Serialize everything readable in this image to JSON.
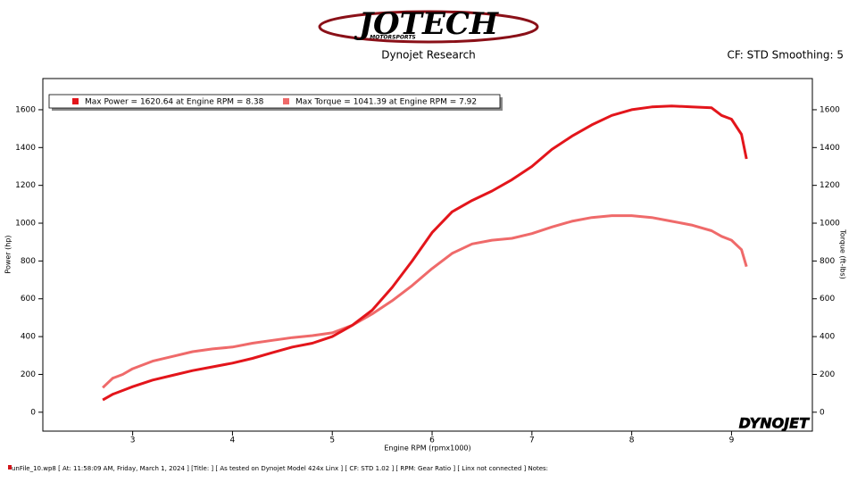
{
  "chart_data": {
    "type": "line",
    "brand": "JOTECH",
    "brand_tagline": "MOTORSPORTS",
    "title": "Dynojet Research",
    "subtitle": "CF: STD Smoothing: 5",
    "x_label": "Engine RPM (rpmx1000)",
    "y_label": "Power (hp)",
    "y2_label": "Torque (ft-lbs)",
    "watermark": "DYNOJET",
    "footer": "unFile_10.wp8  [ At: 11:58:09 AM, Friday, March 1, 2024 ] [Title: ]  [ As tested on Dynojet Model 424x Linx ] [ CF: STD 1.02 ] [ RPM: Gear Ratio ] [ Linx not connected ] Notes:",
    "x": [
      2.7,
      2.8,
      2.9,
      3.0,
      3.2,
      3.4,
      3.6,
      3.8,
      4.0,
      4.2,
      4.4,
      4.6,
      4.8,
      5.0,
      5.2,
      5.4,
      5.6,
      5.8,
      6.0,
      6.2,
      6.4,
      6.6,
      6.8,
      7.0,
      7.2,
      7.4,
      7.6,
      7.8,
      8.0,
      8.2,
      8.4,
      8.6,
      8.8,
      8.9,
      9.0,
      9.1,
      9.15
    ],
    "series": [
      {
        "name": "Max Power = 1620.64 at Engine RPM = 8.38",
        "color": "#e3151b",
        "values": [
          65,
          95,
          115,
          135,
          170,
          195,
          220,
          240,
          260,
          285,
          315,
          345,
          365,
          400,
          460,
          540,
          660,
          800,
          950,
          1060,
          1120,
          1170,
          1230,
          1300,
          1390,
          1460,
          1520,
          1570,
          1600,
          1615,
          1620,
          1615,
          1610,
          1570,
          1550,
          1470,
          1340
        ]
      },
      {
        "name": "Max Torque = 1041.39 at Engine RPM = 7.92",
        "color": "#ef6a6a",
        "axis": "y2",
        "values": [
          130,
          180,
          200,
          230,
          270,
          295,
          320,
          335,
          345,
          365,
          380,
          395,
          405,
          420,
          460,
          520,
          590,
          670,
          760,
          840,
          890,
          910,
          920,
          945,
          980,
          1010,
          1030,
          1040,
          1040,
          1030,
          1010,
          990,
          960,
          930,
          910,
          860,
          770
        ]
      }
    ],
    "xlim": [
      2.1,
      9.81
    ],
    "xticks": [
      3,
      4,
      5,
      6,
      7,
      8,
      9
    ],
    "ylim": [
      -100,
      1765
    ],
    "yticks": [
      0,
      200,
      400,
      600,
      800,
      1000,
      1200,
      1400,
      1600
    ],
    "y2lim": [
      -100,
      1765
    ],
    "y2ticks": [
      0,
      200,
      400,
      600,
      800,
      1000,
      1200,
      1400,
      1600
    ]
  }
}
